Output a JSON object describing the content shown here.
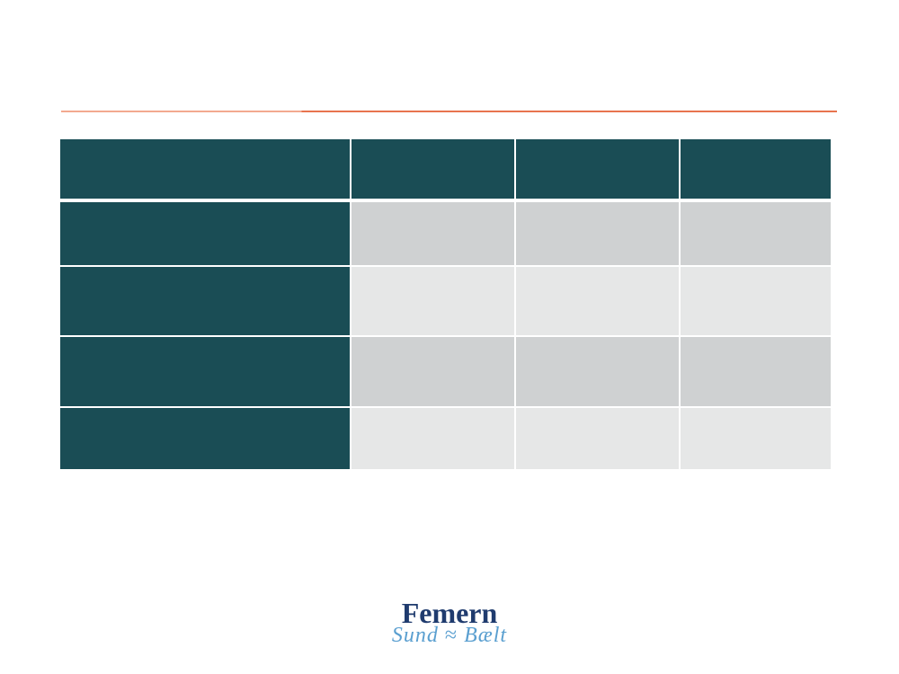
{
  "logo": {
    "name": "Femern",
    "left": "Sund",
    "right": "Bælt"
  }
}
